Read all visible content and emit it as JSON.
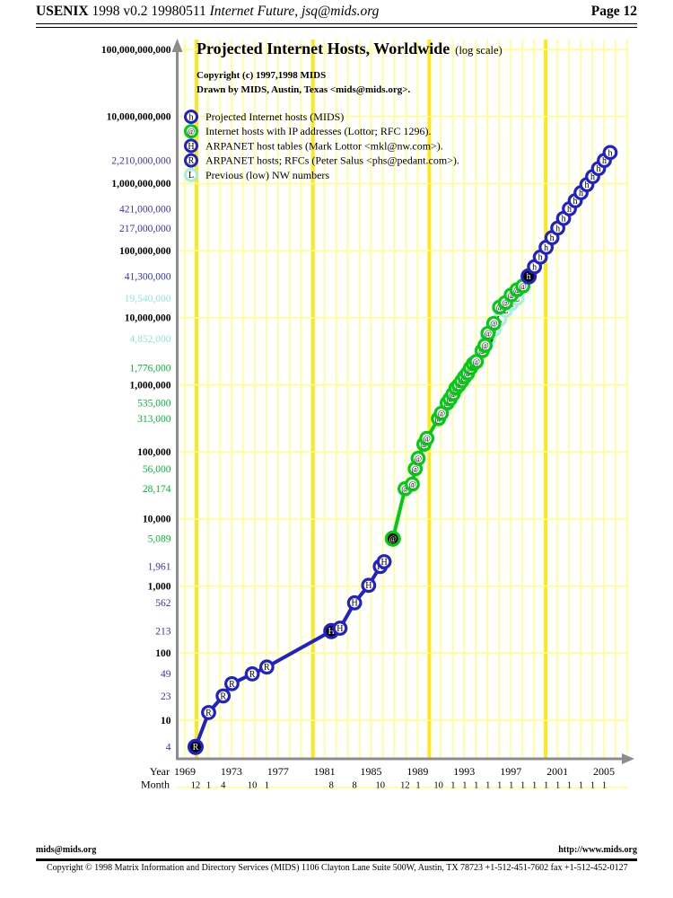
{
  "header": {
    "left_bold": "USENIX",
    "left_regular": " 1998 v0.2 19980511 ",
    "left_italic": "Internet Future, jsq@mids.org",
    "right": "Page 12"
  },
  "footer": {
    "left": "mids@mids.org",
    "right": "http://www.mids.org",
    "copyright": "Copyright © 1998 Matrix Information and Directory Services (MIDS) 1106 Clayton Lane Suite 500W, Austin, TX 78723 +1-512-451-7602 fax +1-512-452-0127"
  },
  "chart_data": {
    "type": "line",
    "scale": "log",
    "title": "Projected Internet Hosts, Worldwide",
    "title_suffix": "(log scale)",
    "copyright_line1": "Copyright (c) 1997,1998 MIDS",
    "copyright_line2": "Drawn by MIDS, Austin, Texas <mids@mids.org>.",
    "xlabel_year": "Year",
    "xlabel_month": "Month",
    "ylim": [
      1,
      100000000000
    ],
    "xlim": [
      1969,
      2007
    ],
    "grid": true,
    "legend_position": "top-left",
    "colors": {
      "blue": "#2121c8",
      "green": "#00cc11",
      "cyan": "#a8eedd",
      "label_blue": "#3333bb",
      "label_green": "#00bb33",
      "label_cyan": "#8fe8d2",
      "black": "#000000",
      "grid_thin": "#ffff80",
      "grid_thick": "#ffe81a",
      "axis": "#8c8c8c"
    },
    "legend": [
      {
        "letter": "h",
        "color": "blue",
        "label": "Projected Internet hosts (MIDS)"
      },
      {
        "letter": "@",
        "color": "green",
        "label": "Internet hosts with IP addresses (Lottor; RFC 1296)."
      },
      {
        "letter": "H",
        "color": "blue",
        "label": "ARPANET host tables (Mark Lottor <mkl@nw.com>)."
      },
      {
        "letter": "R",
        "color": "blue",
        "label": "ARPANET hosts; RFCs (Peter Salus <phs@pedant.com>)."
      },
      {
        "letter": "L",
        "color": "cyan",
        "label": "Previous (low) NW numbers"
      }
    ],
    "y_axis_labels": [
      {
        "text": "100,000,000,000",
        "value": 100000000000,
        "color": "black",
        "bold": true
      },
      {
        "text": "10,000,000,000",
        "value": 10000000000,
        "color": "black",
        "bold": true
      },
      {
        "text": "2,210,000,000",
        "value": 2210000000,
        "color": "blue",
        "bold": false
      },
      {
        "text": "1,000,000,000",
        "value": 1000000000,
        "color": "black",
        "bold": true
      },
      {
        "text": "421,000,000",
        "value": 421000000,
        "color": "blue",
        "bold": false
      },
      {
        "text": "217,000,000",
        "value": 217000000,
        "color": "blue",
        "bold": false
      },
      {
        "text": "100,000,000",
        "value": 100000000,
        "color": "black",
        "bold": true
      },
      {
        "text": "41,300,000",
        "value": 41300000,
        "color": "blue",
        "bold": false
      },
      {
        "text": "19,540,000",
        "value": 19540000,
        "color": "cyan",
        "bold": false
      },
      {
        "text": "10,000,000",
        "value": 10000000,
        "color": "black",
        "bold": true
      },
      {
        "text": "4,852,000",
        "value": 4852000,
        "color": "cyan",
        "bold": false
      },
      {
        "text": "1,776,000",
        "value": 1776000,
        "color": "green",
        "bold": false
      },
      {
        "text": "1,000,000",
        "value": 1000000,
        "color": "black",
        "bold": true
      },
      {
        "text": "535,000",
        "value": 535000,
        "color": "green",
        "bold": false
      },
      {
        "text": "313,000",
        "value": 313000,
        "color": "green",
        "bold": false
      },
      {
        "text": "100,000",
        "value": 100000,
        "color": "black",
        "bold": true
      },
      {
        "text": "56,000",
        "value": 56000,
        "color": "green",
        "bold": false
      },
      {
        "text": "28,174",
        "value": 28174,
        "color": "green",
        "bold": false
      },
      {
        "text": "10,000",
        "value": 10000,
        "color": "black",
        "bold": true
      },
      {
        "text": "5,089",
        "value": 5089,
        "color": "green",
        "bold": false
      },
      {
        "text": "1,961",
        "value": 1961,
        "color": "blue",
        "bold": false
      },
      {
        "text": "1,000",
        "value": 1000,
        "color": "black",
        "bold": true
      },
      {
        "text": "562",
        "value": 562,
        "color": "blue",
        "bold": false
      },
      {
        "text": "213",
        "value": 213,
        "color": "blue",
        "bold": false
      },
      {
        "text": "100",
        "value": 100,
        "color": "black",
        "bold": true
      },
      {
        "text": "49",
        "value": 49,
        "color": "blue",
        "bold": false
      },
      {
        "text": "23",
        "value": 23,
        "color": "blue",
        "bold": false
      },
      {
        "text": "10",
        "value": 10,
        "color": "black",
        "bold": true
      },
      {
        "text": "4",
        "value": 4,
        "color": "blue",
        "bold": false
      }
    ],
    "x_year_labels": [
      1969,
      1973,
      1977,
      1981,
      1985,
      1989,
      1993,
      1997,
      2001,
      2005
    ],
    "x_month_ticks": [
      {
        "label": "12",
        "year": 1969.92
      },
      {
        "label": "1",
        "year": 1971.04
      },
      {
        "label": "4",
        "year": 1972.29
      },
      {
        "label": "10",
        "year": 1974.79
      },
      {
        "label": "1",
        "year": 1976.04
      },
      {
        "label": "8",
        "year": 1981.58
      },
      {
        "label": "8",
        "year": 1983.58
      },
      {
        "label": "10",
        "year": 1985.79
      },
      {
        "label": "12",
        "year": 1987.92
      },
      {
        "label": "1",
        "year": 1989.04
      },
      {
        "label": "10",
        "year": 1990.79
      },
      {
        "label": "1",
        "year": 1992.04
      },
      {
        "label": "1",
        "year": 1993.04
      },
      {
        "label": "1",
        "year": 1994.04
      },
      {
        "label": "1",
        "year": 1995.04
      },
      {
        "label": "1",
        "year": 1996.04
      },
      {
        "label": "1",
        "year": 1997.04
      },
      {
        "label": "1",
        "year": 1998.04
      },
      {
        "label": "1",
        "year": 1999.04
      },
      {
        "label": "1",
        "year": 2000.04
      },
      {
        "label": "1",
        "year": 2001.04
      },
      {
        "label": "1",
        "year": 2002.04
      },
      {
        "label": "1",
        "year": 2003.04
      },
      {
        "label": "1",
        "year": 2004.04
      },
      {
        "label": "1",
        "year": 2005.04
      }
    ],
    "line_groups": [
      {
        "name": "nw-low-line",
        "series": [
          "L"
        ]
      },
      {
        "name": "internet-hosts-line",
        "series": [
          "@"
        ]
      },
      {
        "name": "arpanet-line",
        "series": [
          "R",
          "H"
        ]
      },
      {
        "name": "projection-line",
        "series": [
          "h"
        ]
      }
    ],
    "series": {
      "R": {
        "letter": "R",
        "color": "blue",
        "name": "ARPANET hosts; RFCs",
        "points": [
          {
            "date": "1969-12",
            "year": 1969.92,
            "value": 4,
            "filled": true
          },
          {
            "date": "1971-01",
            "year": 1971.04,
            "value": 13
          },
          {
            "date": "1972-04",
            "year": 1972.29,
            "value": 23
          },
          {
            "date": "1973-01",
            "year": 1973.04,
            "value": 35
          },
          {
            "date": "1974-10",
            "year": 1974.79,
            "value": 49
          },
          {
            "date": "1976-01",
            "year": 1976.04,
            "value": 62
          }
        ]
      },
      "H": {
        "letter": "H",
        "color": "blue",
        "name": "ARPANET host tables",
        "points": [
          {
            "date": "1981-08",
            "year": 1981.58,
            "value": 213,
            "filled": true
          },
          {
            "date": "1982-05",
            "year": 1982.33,
            "value": 235
          },
          {
            "date": "1983-08",
            "year": 1983.58,
            "value": 562
          },
          {
            "date": "1984-10",
            "year": 1984.79,
            "value": 1024
          },
          {
            "date": "1985-10",
            "year": 1985.79,
            "value": 1961
          },
          {
            "date": "1986-02",
            "year": 1986.12,
            "value": 2308
          }
        ]
      },
      "@": {
        "letter": "@",
        "color": "green",
        "name": "Internet hosts with IP addresses",
        "points": [
          {
            "date": "1986-11",
            "year": 1986.87,
            "value": 5089,
            "filled": true
          },
          {
            "date": "1987-12",
            "year": 1987.92,
            "value": 28174
          },
          {
            "date": "1988-07",
            "year": 1988.54,
            "value": 33000
          },
          {
            "date": "1988-10",
            "year": 1988.79,
            "value": 56000
          },
          {
            "date": "1989-01",
            "year": 1989.04,
            "value": 80000
          },
          {
            "date": "1989-07",
            "year": 1989.54,
            "value": 130000
          },
          {
            "date": "1989-10",
            "year": 1989.79,
            "value": 159000
          },
          {
            "date": "1990-10",
            "year": 1990.79,
            "value": 313000
          },
          {
            "date": "1991-01",
            "year": 1991.04,
            "value": 376000
          },
          {
            "date": "1991-07",
            "year": 1991.54,
            "value": 535000
          },
          {
            "date": "1991-10",
            "year": 1991.79,
            "value": 617000
          },
          {
            "date": "1992-01",
            "year": 1992.04,
            "value": 727000
          },
          {
            "date": "1992-04",
            "year": 1992.29,
            "value": 890000
          },
          {
            "date": "1992-07",
            "year": 1992.54,
            "value": 992000
          },
          {
            "date": "1992-10",
            "year": 1992.79,
            "value": 1136000
          },
          {
            "date": "1993-01",
            "year": 1993.04,
            "value": 1313000
          },
          {
            "date": "1993-04",
            "year": 1993.29,
            "value": 1486000
          },
          {
            "date": "1993-07",
            "year": 1993.54,
            "value": 1776000
          },
          {
            "date": "1993-10",
            "year": 1993.79,
            "value": 2056000
          },
          {
            "date": "1994-01",
            "year": 1994.04,
            "value": 2217000
          },
          {
            "date": "1994-07",
            "year": 1994.54,
            "value": 3212000
          },
          {
            "date": "1994-10",
            "year": 1994.79,
            "value": 3864000
          },
          {
            "date": "1995-01",
            "year": 1995.04,
            "value": 5846000
          },
          {
            "date": "1995-07",
            "year": 1995.54,
            "value": 8200000
          },
          {
            "date": "1996-01",
            "year": 1996.04,
            "value": 14352000
          },
          {
            "date": "1996-07",
            "year": 1996.54,
            "value": 16729000
          },
          {
            "date": "1997-01",
            "year": 1997.04,
            "value": 21819000
          },
          {
            "date": "1997-07",
            "year": 1997.54,
            "value": 26053000
          },
          {
            "date": "1998-01",
            "year": 1998.04,
            "value": 29670000
          }
        ]
      },
      "L": {
        "letter": "L",
        "color": "cyan",
        "name": "Previous (low) NW numbers",
        "points": [
          {
            "date": "1994-01",
            "year": 1994.04,
            "value": 2217000
          },
          {
            "date": "1994-07",
            "year": 1994.54,
            "value": 3212000
          },
          {
            "date": "1994-10",
            "year": 1994.79,
            "value": 3864000
          },
          {
            "date": "1995-01",
            "year": 1995.04,
            "value": 4852000,
            "filled": true
          },
          {
            "date": "1995-07",
            "year": 1995.54,
            "value": 6642000
          },
          {
            "date": "1996-01",
            "year": 1996.04,
            "value": 9472000
          },
          {
            "date": "1996-07",
            "year": 1996.54,
            "value": 12881000
          },
          {
            "date": "1997-01",
            "year": 1997.04,
            "value": 16146000
          },
          {
            "date": "1997-07",
            "year": 1997.54,
            "value": 19540000
          }
        ]
      },
      "h": {
        "letter": "h",
        "color": "blue",
        "name": "Projected Internet hosts (MIDS)",
        "points": [
          {
            "date": "1998-07",
            "year": 1998.54,
            "value": 41300000,
            "filled": true
          },
          {
            "date": "1999-01",
            "year": 1999.04,
            "value": 57500000
          },
          {
            "date": "1999-07",
            "year": 1999.54,
            "value": 80100000
          },
          {
            "date": "2000-01",
            "year": 2000.04,
            "value": 112000000
          },
          {
            "date": "2000-07",
            "year": 2000.54,
            "value": 156000000
          },
          {
            "date": "2001-01",
            "year": 2001.04,
            "value": 217000000
          },
          {
            "date": "2001-07",
            "year": 2001.54,
            "value": 302000000
          },
          {
            "date": "2002-01",
            "year": 2002.04,
            "value": 421000000
          },
          {
            "date": "2002-07",
            "year": 2002.54,
            "value": 555000000
          },
          {
            "date": "2003-01",
            "year": 2003.04,
            "value": 731000000
          },
          {
            "date": "2003-07",
            "year": 2003.54,
            "value": 963000000
          },
          {
            "date": "2004-01",
            "year": 2004.04,
            "value": 1269000000
          },
          {
            "date": "2004-07",
            "year": 2004.54,
            "value": 1672000000
          },
          {
            "date": "2005-01",
            "year": 2005.04,
            "value": 2210000000
          },
          {
            "date": "2005-07",
            "year": 2005.54,
            "value": 2900000000
          }
        ]
      }
    }
  }
}
